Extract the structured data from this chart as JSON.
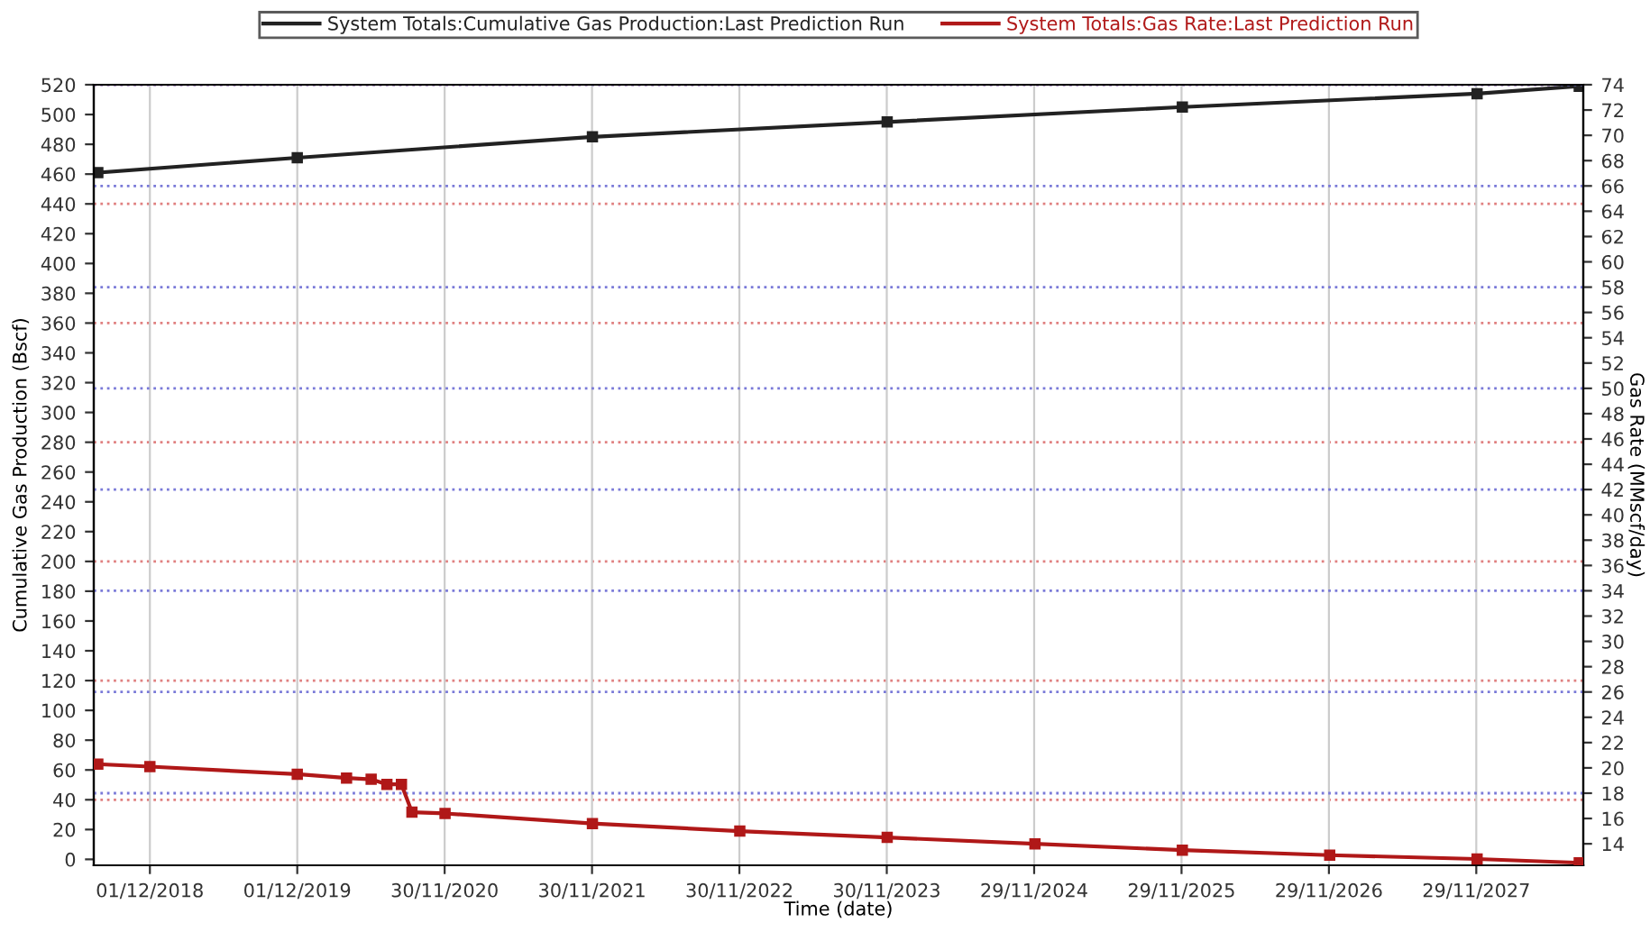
{
  "chart_data": {
    "type": "line",
    "xlabel": "Time (date)",
    "ylabel": "Cumulative Gas Production (Bscf)",
    "y2label": "Gas Rate (MMscf/day)",
    "series": [
      {
        "name": "System Totals:Cumulative Gas Production:Last Prediction Run",
        "color": "#222222",
        "x": [
          "2018-07-25",
          "2019-12-01",
          "2021-12-01",
          "2023-12-01",
          "2025-12-01",
          "2027-12-01",
          "2028-08-10"
        ],
        "values": [
          461,
          471,
          485,
          495,
          505,
          514,
          519
        ]
      },
      {
        "name": "System Totals:Gas Rate:Last Prediction Run",
        "color": "#b01818",
        "axis": "y2",
        "x": [
          "2018-07-25",
          "2018-12-01",
          "2019-12-01",
          "2020-04-01",
          "2020-06-01",
          "2020-07-10",
          "2020-08-15",
          "2020-09-10",
          "2020-12-01",
          "2021-12-01",
          "2022-12-01",
          "2023-12-01",
          "2024-12-01",
          "2025-12-01",
          "2026-12-01",
          "2027-12-01",
          "2028-08-10"
        ],
        "values": [
          20.3,
          20.1,
          19.5,
          19.2,
          19.1,
          18.7,
          18.7,
          16.5,
          16.4,
          15.6,
          15.0,
          14.5,
          14.0,
          13.5,
          13.1,
          12.8,
          12.5
        ]
      }
    ],
    "xlim": [
      "2018-07-15",
      "2028-08-20"
    ],
    "xticks": [
      {
        "value": "2018-12-01",
        "label": "01/12/2018"
      },
      {
        "value": "2019-12-01",
        "label": "01/12/2019"
      },
      {
        "value": "2020-11-30",
        "label": "30/11/2020"
      },
      {
        "value": "2021-11-30",
        "label": "30/11/2021"
      },
      {
        "value": "2022-11-30",
        "label": "30/11/2022"
      },
      {
        "value": "2023-11-30",
        "label": "30/11/2023"
      },
      {
        "value": "2024-11-29",
        "label": "29/11/2024"
      },
      {
        "value": "2025-11-29",
        "label": "29/11/2025"
      },
      {
        "value": "2026-11-29",
        "label": "29/11/2026"
      },
      {
        "value": "2027-11-29",
        "label": "29/11/2027"
      }
    ],
    "ylim": [
      -4,
      520
    ],
    "yticks": [
      0,
      20,
      40,
      60,
      80,
      100,
      120,
      140,
      160,
      180,
      200,
      220,
      240,
      260,
      280,
      300,
      320,
      340,
      360,
      380,
      400,
      420,
      440,
      460,
      480,
      500,
      520
    ],
    "y2lim": [
      12.3,
      74
    ],
    "y2ticks": [
      14,
      16,
      18,
      20,
      22,
      24,
      26,
      28,
      30,
      32,
      34,
      36,
      38,
      40,
      42,
      44,
      46,
      48,
      50,
      52,
      54,
      56,
      58,
      60,
      62,
      64,
      66,
      68,
      70,
      72,
      74
    ],
    "grid": true,
    "legend": "top",
    "marker": "square",
    "line_style": "solid"
  }
}
